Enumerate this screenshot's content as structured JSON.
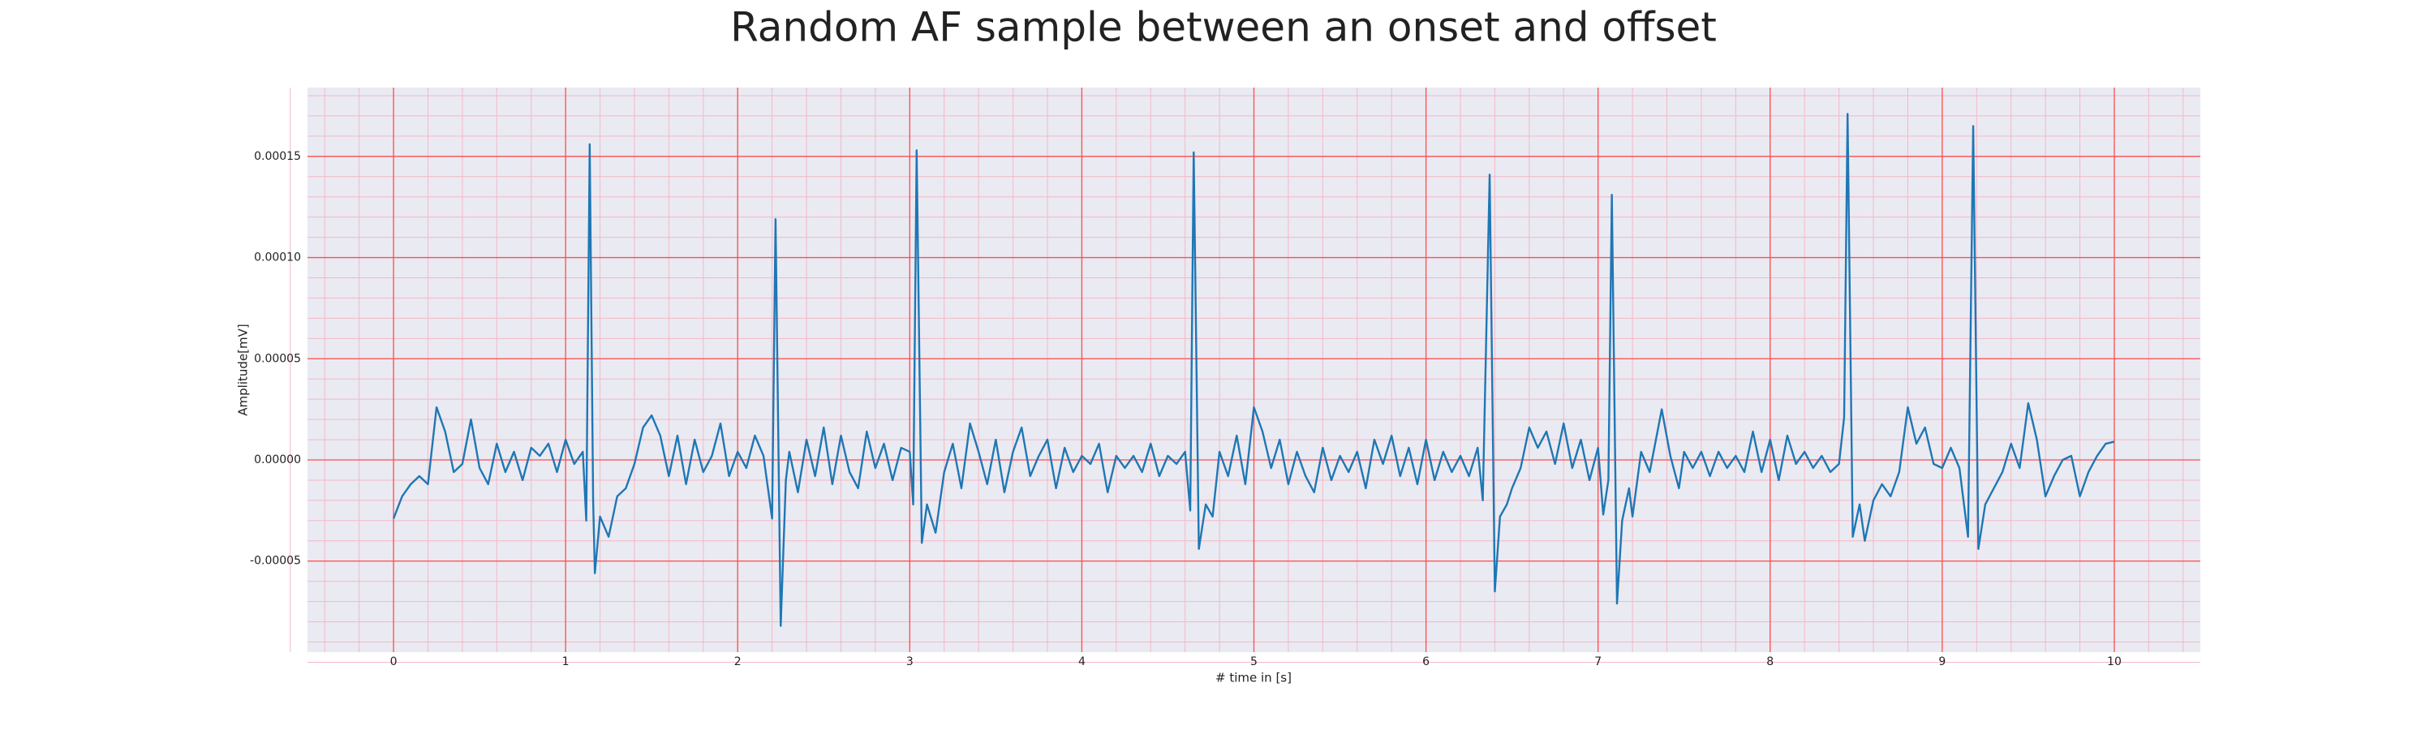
{
  "chart_data": {
    "type": "line",
    "title": "Random AF sample between an onset and offset",
    "x_label": "# time in [s]",
    "y_label": "Amplitude[mV]",
    "color": "#1f77b4",
    "grid": true,
    "grid_color": "#ff4d4d",
    "minor_grid": true,
    "background": "#eaeaf2",
    "xlim": [
      -0.5,
      10.5
    ],
    "ylim": [
      -9.5e-05,
      0.000184
    ],
    "xticks": [
      0,
      1,
      2,
      3,
      4,
      5,
      6,
      7,
      8,
      9,
      10
    ],
    "yticks": [
      {
        "value": -5e-05,
        "label": "-0.00005"
      },
      {
        "value": 0,
        "label": "0.00000"
      },
      {
        "value": 5e-05,
        "label": "0.00005"
      },
      {
        "value": 0.0001,
        "label": "0.00010"
      },
      {
        "value": 0.00015,
        "label": "0.00015"
      }
    ],
    "x": [
      0,
      0.05,
      0.1,
      0.15,
      0.2,
      0.25,
      0.3,
      0.35,
      0.4,
      0.45,
      0.5,
      0.55,
      0.6,
      0.65,
      0.7,
      0.75,
      0.8,
      0.85,
      0.9,
      0.95,
      1.0,
      1.05,
      1.1,
      1.12,
      1.14,
      1.16,
      1.17,
      1.2,
      1.25,
      1.3,
      1.35,
      1.4,
      1.45,
      1.5,
      1.55,
      1.6,
      1.65,
      1.7,
      1.75,
      1.8,
      1.85,
      1.9,
      1.95,
      2.0,
      2.05,
      2.1,
      2.15,
      2.2,
      2.22,
      2.25,
      2.28,
      2.3,
      2.35,
      2.4,
      2.45,
      2.5,
      2.55,
      2.6,
      2.65,
      2.7,
      2.75,
      2.8,
      2.85,
      2.9,
      2.95,
      3.0,
      3.02,
      3.04,
      3.07,
      3.1,
      3.15,
      3.2,
      3.25,
      3.3,
      3.35,
      3.4,
      3.45,
      3.5,
      3.55,
      3.6,
      3.65,
      3.7,
      3.75,
      3.8,
      3.85,
      3.9,
      3.95,
      4.0,
      4.05,
      4.1,
      4.15,
      4.2,
      4.25,
      4.3,
      4.35,
      4.4,
      4.45,
      4.5,
      4.55,
      4.6,
      4.63,
      4.65,
      4.68,
      4.72,
      4.76,
      4.8,
      4.85,
      4.9,
      4.95,
      5.0,
      5.05,
      5.1,
      5.15,
      5.2,
      5.25,
      5.3,
      5.35,
      5.4,
      5.45,
      5.5,
      5.55,
      5.6,
      5.65,
      5.7,
      5.75,
      5.8,
      5.85,
      5.9,
      5.95,
      6.0,
      6.05,
      6.1,
      6.15,
      6.2,
      6.25,
      6.3,
      6.33,
      6.37,
      6.4,
      6.43,
      6.47,
      6.5,
      6.55,
      6.6,
      6.65,
      6.7,
      6.75,
      6.8,
      6.85,
      6.9,
      6.95,
      7.0,
      7.03,
      7.06,
      7.08,
      7.11,
      7.14,
      7.18,
      7.2,
      7.25,
      7.3,
      7.37,
      7.42,
      7.47,
      7.5,
      7.55,
      7.6,
      7.65,
      7.7,
      7.75,
      7.8,
      7.85,
      7.9,
      7.95,
      8.0,
      8.05,
      8.1,
      8.15,
      8.2,
      8.25,
      8.3,
      8.35,
      8.4,
      8.43,
      8.45,
      8.48,
      8.52,
      8.55,
      8.6,
      8.65,
      8.7,
      8.75,
      8.8,
      8.85,
      8.9,
      8.95,
      9.0,
      9.05,
      9.1,
      9.15,
      9.18,
      9.21,
      9.25,
      9.3,
      9.35,
      9.4,
      9.45,
      9.5,
      9.55,
      9.6,
      9.65,
      9.7,
      9.75,
      9.8,
      9.85,
      9.9,
      9.95,
      10.0
    ],
    "values": [
      -2.9e-05,
      -1.8e-05,
      -1.2e-05,
      -8e-06,
      -1.2e-05,
      2.6e-05,
      1.4e-05,
      -6e-06,
      -2e-06,
      2e-05,
      -4e-06,
      -1.2e-05,
      8e-06,
      -6e-06,
      4e-06,
      -1e-05,
      6e-06,
      2e-06,
      8e-06,
      -6e-06,
      1e-05,
      -2e-06,
      4e-06,
      -3e-05,
      0.000156,
      -2e-05,
      -5.6e-05,
      -2.8e-05,
      -3.8e-05,
      -1.8e-05,
      -1.4e-05,
      -2e-06,
      1.6e-05,
      2.2e-05,
      1.2e-05,
      -8e-06,
      1.2e-05,
      -1.2e-05,
      1e-05,
      -6e-06,
      2e-06,
      1.8e-05,
      -8e-06,
      4e-06,
      -4e-06,
      1.2e-05,
      2e-06,
      -2.9e-05,
      0.000119,
      -8.2e-05,
      -1e-05,
      4e-06,
      -1.6e-05,
      1e-05,
      -8e-06,
      1.6e-05,
      -1.2e-05,
      1.2e-05,
      -6e-06,
      -1.4e-05,
      1.4e-05,
      -4e-06,
      8e-06,
      -1e-05,
      6e-06,
      4e-06,
      -2.2e-05,
      0.000153,
      -4.1e-05,
      -2.2e-05,
      -3.6e-05,
      -6e-06,
      8e-06,
      -1.4e-05,
      1.8e-05,
      4e-06,
      -1.2e-05,
      1e-05,
      -1.6e-05,
      4e-06,
      1.6e-05,
      -8e-06,
      2e-06,
      1e-05,
      -1.4e-05,
      6e-06,
      -6e-06,
      2e-06,
      -2e-06,
      8e-06,
      -1.6e-05,
      2e-06,
      -4e-06,
      2e-06,
      -6e-06,
      8e-06,
      -8e-06,
      2e-06,
      -2e-06,
      4e-06,
      -2.5e-05,
      0.000152,
      -4.4e-05,
      -2.2e-05,
      -2.8e-05,
      4e-06,
      -8e-06,
      1.2e-05,
      -1.2e-05,
      2.6e-05,
      1.4e-05,
      -4e-06,
      1e-05,
      -1.2e-05,
      4e-06,
      -8e-06,
      -1.6e-05,
      6e-06,
      -1e-05,
      2e-06,
      -6e-06,
      4e-06,
      -1.4e-05,
      1e-05,
      -2e-06,
      1.2e-05,
      -8e-06,
      6e-06,
      -1.2e-05,
      1e-05,
      -1e-05,
      4e-06,
      -6e-06,
      2e-06,
      -8e-06,
      6e-06,
      -2e-05,
      0.000141,
      -6.5e-05,
      -2.8e-05,
      -2.2e-05,
      -1.4e-05,
      -4e-06,
      1.6e-05,
      6e-06,
      1.4e-05,
      -2e-06,
      1.8e-05,
      -4e-06,
      1e-05,
      -1e-05,
      6e-06,
      -2.7e-05,
      -1e-05,
      0.000131,
      -7.1e-05,
      -3e-05,
      -1.4e-05,
      -2.8e-05,
      4e-06,
      -6e-06,
      2.5e-05,
      2e-06,
      -1.4e-05,
      4e-06,
      -4e-06,
      4e-06,
      -8e-06,
      4e-06,
      -4e-06,
      2e-06,
      -6e-06,
      1.4e-05,
      -6e-06,
      1e-05,
      -1e-05,
      1.2e-05,
      -2e-06,
      4e-06,
      -4e-06,
      2e-06,
      -6e-06,
      -2e-06,
      2.1e-05,
      0.000171,
      -3.8e-05,
      -2.2e-05,
      -4e-05,
      -2e-05,
      -1.2e-05,
      -1.8e-05,
      -6e-06,
      2.6e-05,
      8e-06,
      1.6e-05,
      -2e-06,
      -4e-06,
      6e-06,
      -4e-06,
      -3.8e-05,
      0.000165,
      -4.4e-05,
      -2.2e-05,
      -1.4e-05,
      -6e-06,
      8e-06,
      -4e-06,
      2.8e-05,
      1e-05,
      -1.8e-05,
      -8e-06,
      0,
      2e-06,
      -1.8e-05,
      -6e-06,
      2e-06,
      8e-06,
      9e-06
    ]
  }
}
